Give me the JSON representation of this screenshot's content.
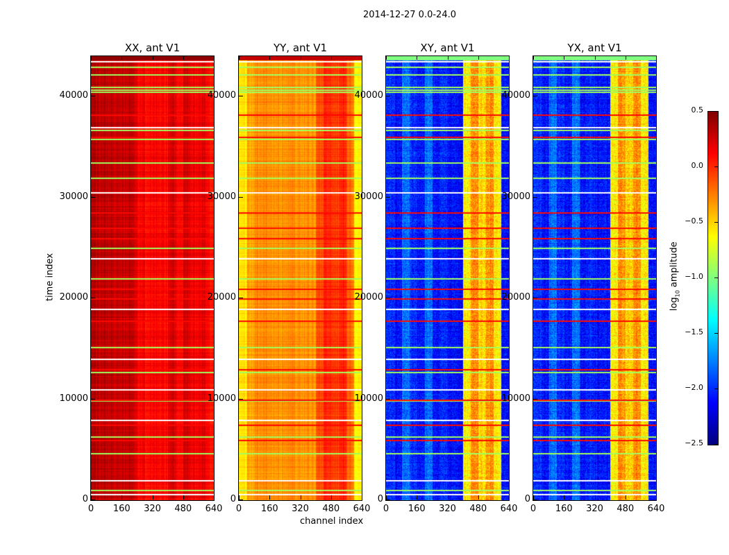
{
  "chart_data": {
    "type": "heatmap",
    "title": "2014-12-27 0.0-24.0",
    "xlabel": "channel index",
    "ylabel": "time index",
    "xlim": [
      0,
      640
    ],
    "ylim": [
      0,
      44000
    ],
    "xticks": [
      "0",
      "160",
      "320",
      "480",
      "640"
    ],
    "xtick_values": [
      0,
      160,
      320,
      480,
      640
    ],
    "yticks": [
      "0",
      "10000",
      "20000",
      "30000",
      "40000"
    ],
    "ytick_values": [
      0,
      10000,
      20000,
      30000,
      40000
    ],
    "colormap": "jet",
    "colorbar": {
      "label_main": "log",
      "label_sub": "10",
      "label_rest": " amplitude",
      "range": [
        -2.5,
        0.5
      ],
      "ticks": [
        "0.5",
        "0.0",
        "−0.5",
        "−1.0",
        "−1.5",
        "−2.0",
        "−2.5"
      ],
      "tick_values": [
        0.5,
        0.0,
        -0.5,
        -1.0,
        -1.5,
        -2.0,
        -2.5
      ]
    },
    "channel_band_width": 40,
    "panels": [
      {
        "title": "XX, ant V1",
        "band_values": [
          0.35,
          0.3,
          0.3,
          0.3,
          0.3,
          0.28,
          0.15,
          0.1,
          0.1,
          0.12,
          0.22,
          0.15,
          0.25,
          0.15,
          0.22,
          0.1
        ],
        "top_value": 0.45
      },
      {
        "title": "YY, ant V1",
        "band_values": [
          -0.55,
          -0.35,
          -0.3,
          -0.3,
          -0.3,
          -0.3,
          -0.3,
          -0.3,
          -0.3,
          -0.3,
          -0.1,
          0.0,
          -0.05,
          0.02,
          -0.2,
          -0.6
        ],
        "top_value": 0.3
      },
      {
        "title": "XY, ant V1",
        "band_values": [
          -2.0,
          -2.1,
          -1.8,
          -2.0,
          -2.1,
          -1.8,
          -2.1,
          -2.0,
          -2.1,
          -2.1,
          -0.6,
          -0.3,
          -0.5,
          -0.3,
          -0.6,
          -2.1
        ],
        "top_value": -1.0
      },
      {
        "title": "YX, ant V1",
        "band_values": [
          -2.0,
          -2.1,
          -1.8,
          -2.0,
          -2.1,
          -1.8,
          -2.1,
          -2.0,
          -2.1,
          -2.1,
          -0.6,
          -0.3,
          -0.5,
          -0.3,
          -0.6,
          -2.1
        ],
        "top_value": -1.0
      }
    ],
    "flagged_rows": {
      "green_value": -0.9,
      "green": [
        43000,
        42200,
        41000,
        40700,
        40500,
        36700,
        35800,
        33500,
        32000,
        25000,
        22000,
        15200,
        12700,
        9900,
        6300,
        4700,
        1000
      ],
      "red_value": 0.1,
      "red": [
        38200,
        36000,
        28500,
        27000,
        26000,
        21000,
        20000,
        17800,
        13000,
        10000,
        7500,
        6000
      ],
      "blank": [
        43500,
        37000,
        30500,
        24000,
        19000,
        14000,
        11000,
        8000,
        2000,
        600
      ]
    }
  }
}
